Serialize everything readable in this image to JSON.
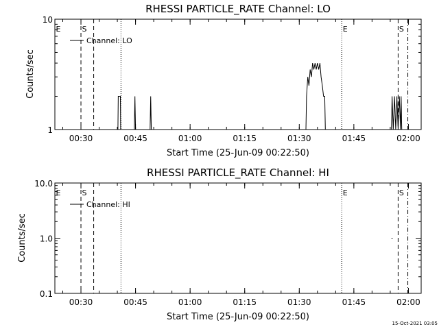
{
  "colors": {
    "background": "#ffffff",
    "foreground": "#000000"
  },
  "timestamp": "15-Oct-2021 03:05",
  "chart_data": [
    {
      "type": "line",
      "title": "RHESSI PARTICLE_RATE Channel: LO",
      "xlabel": "Start Time (25-Jun-09 00:22:50)",
      "ylabel": "Counts/sec",
      "yscale": "log",
      "ylim": [
        1,
        10
      ],
      "ytick_labels": [
        "1",
        "10"
      ],
      "xlim": [
        "00:22:50",
        "02:03:30"
      ],
      "xtick_labels": [
        "00:30",
        "00:45",
        "01:00",
        "01:15",
        "01:30",
        "01:45",
        "02:00"
      ],
      "legend": "Channel: LO",
      "markers": [
        {
          "label": "E",
          "time": "00:22:50",
          "style": "dotted"
        },
        {
          "label": "S",
          "time": "00:30:00",
          "style": "dashed"
        },
        {
          "label": "",
          "time": "00:33:30",
          "style": "dashed"
        },
        {
          "label": "",
          "time": "00:41:00",
          "style": "dotted"
        },
        {
          "label": "E",
          "time": "01:41:40",
          "style": "dotted"
        },
        {
          "label": "S",
          "time": "01:57:10",
          "style": "dashed"
        },
        {
          "label": "",
          "time": "01:59:50",
          "style": "dashdot"
        }
      ],
      "series": [
        {
          "name": "Channel: LO",
          "points": [
            [
              "00:40:10",
              1
            ],
            [
              "00:40:15",
              2
            ],
            [
              "00:40:50",
              2
            ],
            [
              "00:40:55",
              1
            ],
            [
              "00:44:40",
              1
            ],
            [
              "00:44:50",
              2
            ],
            [
              "00:45:00",
              1
            ],
            [
              "00:49:00",
              1
            ],
            [
              "00:49:10",
              2
            ],
            [
              "00:49:20",
              1
            ],
            [
              "01:31:50",
              1
            ],
            [
              "01:32:00",
              2
            ],
            [
              "01:32:20",
              3
            ],
            [
              "01:32:40",
              2.5
            ],
            [
              "01:33:00",
              3.5
            ],
            [
              "01:33:20",
              3
            ],
            [
              "01:33:40",
              4
            ],
            [
              "01:34:00",
              3.5
            ],
            [
              "01:34:20",
              4
            ],
            [
              "01:34:40",
              3.5
            ],
            [
              "01:35:00",
              4
            ],
            [
              "01:35:20",
              3.5
            ],
            [
              "01:35:40",
              4
            ],
            [
              "01:36:00",
              3
            ],
            [
              "01:36:20",
              2.5
            ],
            [
              "01:36:40",
              2
            ],
            [
              "01:37:00",
              2
            ],
            [
              "01:37:10",
              1
            ],
            [
              "01:55:20",
              1
            ],
            [
              "01:55:30",
              2
            ],
            [
              "01:55:50",
              1
            ],
            [
              "01:56:10",
              2
            ],
            [
              "01:56:30",
              1
            ],
            [
              "01:56:50",
              2
            ],
            [
              "01:57:10",
              1
            ],
            [
              "01:57:30",
              2
            ],
            [
              "01:57:50",
              1
            ],
            [
              "01:58:00",
              2
            ],
            [
              "01:58:10",
              1
            ]
          ]
        }
      ]
    },
    {
      "type": "line",
      "title": "RHESSI PARTICLE_RATE Channel: HI",
      "xlabel": "Start Time (25-Jun-09 00:22:50)",
      "ylabel": "Counts/sec",
      "yscale": "log",
      "ylim": [
        0.1,
        10
      ],
      "ytick_labels": [
        "0.1",
        "1.0",
        "10.0"
      ],
      "xlim": [
        "00:22:50",
        "02:03:30"
      ],
      "xtick_labels": [
        "00:30",
        "00:45",
        "01:00",
        "01:15",
        "01:30",
        "01:45",
        "02:00"
      ],
      "legend": "Channel: HI",
      "markers": [
        {
          "label": "E",
          "time": "00:22:50",
          "style": "dotted"
        },
        {
          "label": "S",
          "time": "00:30:00",
          "style": "dashed"
        },
        {
          "label": "",
          "time": "00:33:30",
          "style": "dashed"
        },
        {
          "label": "",
          "time": "00:41:00",
          "style": "dotted"
        },
        {
          "label": "E",
          "time": "01:41:40",
          "style": "dotted"
        },
        {
          "label": "S",
          "time": "01:57:10",
          "style": "dashed"
        },
        {
          "label": "",
          "time": "01:59:50",
          "style": "dashdot"
        }
      ],
      "series": [
        {
          "name": "Channel: HI",
          "points": [
            [
              "01:55:20",
              1
            ],
            [
              "01:55:40",
              1
            ]
          ]
        }
      ]
    }
  ]
}
